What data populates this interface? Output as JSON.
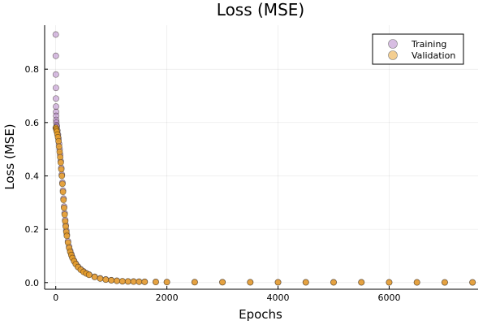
{
  "chart_data": {
    "type": "scatter",
    "title": "Loss (MSE)",
    "xlabel": "Epochs",
    "ylabel": "Loss (MSE)",
    "xlim": [
      -200,
      7600
    ],
    "ylim": [
      -0.025,
      0.965
    ],
    "x_ticks": [
      0,
      2000,
      4000,
      6000
    ],
    "x_tick_labels": [
      "0",
      "2000",
      "4000",
      "6000"
    ],
    "y_ticks": [
      0.0,
      0.2,
      0.4,
      0.6,
      0.8
    ],
    "y_tick_labels": [
      "0.0",
      "0.2",
      "0.4",
      "0.6",
      "0.8"
    ],
    "grid": true,
    "legend_position": "top-right",
    "series": [
      {
        "name": "Training",
        "color": "#b07cc6",
        "x": [
          0,
          1,
          2,
          3,
          4,
          5,
          6,
          7,
          8,
          10,
          15,
          20,
          30,
          40,
          50,
          60,
          70,
          80,
          90,
          100,
          110,
          120,
          130,
          140,
          150,
          160,
          170,
          180,
          190,
          200,
          220,
          240,
          260,
          280,
          300,
          330,
          360,
          400,
          450,
          500,
          550,
          600,
          700,
          800,
          900,
          1000,
          1100,
          1200,
          1300,
          1400,
          1500,
          1600,
          1800,
          2000,
          2500,
          3000,
          3500,
          4000,
          4500,
          5000,
          5500,
          6000,
          6500,
          7000,
          7500
        ],
        "y": [
          0.93,
          0.85,
          0.78,
          0.73,
          0.69,
          0.66,
          0.64,
          0.625,
          0.61,
          0.6,
          0.59,
          0.585,
          0.57,
          0.555,
          0.54,
          0.52,
          0.5,
          0.48,
          0.455,
          0.43,
          0.405,
          0.375,
          0.345,
          0.315,
          0.285,
          0.26,
          0.235,
          0.215,
          0.195,
          0.18,
          0.155,
          0.135,
          0.12,
          0.107,
          0.095,
          0.082,
          0.071,
          0.06,
          0.05,
          0.042,
          0.035,
          0.03,
          0.022,
          0.016,
          0.012,
          0.009,
          0.007,
          0.005,
          0.0045,
          0.004,
          0.0035,
          0.003,
          0.0025,
          0.002,
          0.0017,
          0.0015,
          0.0013,
          0.0012,
          0.0011,
          0.001,
          0.001,
          0.0009,
          0.0009,
          0.0008,
          0.0008
        ]
      },
      {
        "name": "Validation",
        "color": "#e89d24",
        "x": [
          0,
          5,
          10,
          15,
          20,
          30,
          40,
          50,
          60,
          70,
          80,
          90,
          100,
          110,
          120,
          130,
          140,
          150,
          160,
          170,
          180,
          190,
          200,
          220,
          240,
          260,
          280,
          300,
          330,
          360,
          400,
          450,
          500,
          550,
          600,
          700,
          800,
          900,
          1000,
          1100,
          1200,
          1300,
          1400,
          1500,
          1600,
          1800,
          2000,
          2500,
          3000,
          3500,
          4000,
          4500,
          5000,
          5500,
          6000,
          6500,
          7000,
          7500
        ],
        "y": [
          0.58,
          0.58,
          0.575,
          0.57,
          0.565,
          0.555,
          0.545,
          0.53,
          0.51,
          0.49,
          0.47,
          0.45,
          0.425,
          0.4,
          0.37,
          0.34,
          0.31,
          0.28,
          0.255,
          0.23,
          0.21,
          0.19,
          0.175,
          0.15,
          0.13,
          0.115,
          0.103,
          0.092,
          0.08,
          0.069,
          0.058,
          0.048,
          0.04,
          0.034,
          0.029,
          0.021,
          0.015,
          0.011,
          0.0085,
          0.0065,
          0.005,
          0.0042,
          0.0037,
          0.0032,
          0.0028,
          0.0023,
          0.0019,
          0.0016,
          0.0014,
          0.0012,
          0.0011,
          0.001,
          0.0009,
          0.0009,
          0.0008,
          0.0008,
          0.0007,
          0.0007
        ]
      }
    ]
  }
}
